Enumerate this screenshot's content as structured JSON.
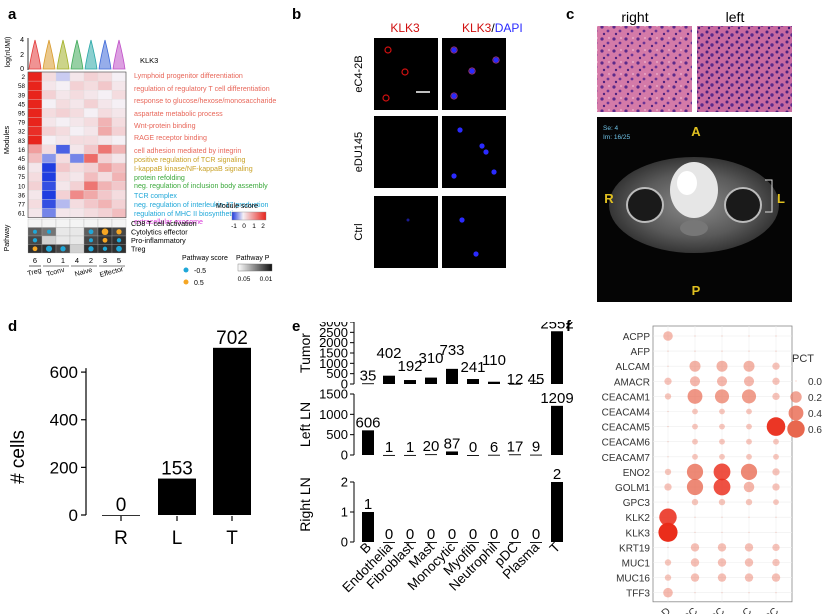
{
  "panel_labels": [
    "a",
    "b",
    "c",
    "d",
    "e",
    "f"
  ],
  "colors": {
    "heat_high": "#e8241c",
    "heat_low": "#1f3de0",
    "heat_mid": "#f5f0f5",
    "bar": "#000000",
    "dot": "#e8674e",
    "dapi": "#2a2aff",
    "klk3": "#d01010",
    "pathway_go_red": "#e8675a",
    "pathway_gold": "#c9a227",
    "pathway_green": "#3aa83a",
    "pathway_blue": "#1fa7d8",
    "pathway_magenta": "#d93ad9"
  },
  "panel_a": {
    "violin_ylabel": "log(nUMI)",
    "violin_ticks": [
      "4",
      "2",
      "0"
    ],
    "violin_gene": "KLK3",
    "modules_label": "Modules",
    "modules": [
      "2",
      "58",
      "39",
      "45",
      "95",
      "79",
      "32",
      "83",
      "16",
      "45",
      "66",
      "75",
      "10",
      "36",
      "77",
      "61"
    ],
    "terms": [
      {
        "text": "Lymphoid progenitor differentiation",
        "color": "red"
      },
      {
        "text": "regulation of regulatory T cell differentiation",
        "color": "red"
      },
      {
        "text": "response to glucose/hexose/monosaccharide",
        "color": "red"
      },
      {
        "text": "aspartate metabolic process",
        "color": "red"
      },
      {
        "text": "Wnt-protein binding",
        "color": "red"
      },
      {
        "text": "RAGE receptor binding",
        "color": "red"
      },
      {
        "text": "cell adhesion mediated by integrin",
        "color": "red"
      },
      {
        "text": "positive regulation of TCR signaling",
        "color": "gold"
      },
      {
        "text": "I-kappaB kinase/NF-kappaB signaling",
        "color": "gold"
      },
      {
        "text": "protein refolding",
        "color": "green"
      },
      {
        "text": "neg. regulation of inclusion body assembly",
        "color": "green"
      },
      {
        "text": "TCR complex",
        "color": "blue"
      },
      {
        "text": "neg. regulation of interleukin-17 production",
        "color": "blue"
      },
      {
        "text": "regulation of MHC II biosynthetic process",
        "color": "blue"
      },
      {
        "text": "extracellular exosome",
        "color": "magenta"
      }
    ],
    "pathway_label": "Pathway",
    "pathways": [
      "CD8 T cell activation",
      "Cytolytics effector",
      "Pro-inflammatory",
      "Treg"
    ],
    "clusters": [
      "6",
      "0",
      "1",
      "4",
      "2",
      "3",
      "5"
    ],
    "groups": [
      "Treg",
      "Tconv",
      "Naive",
      "Effector"
    ],
    "module_score_title": "Module score",
    "module_score_ticks": [
      "-1",
      "0",
      "1",
      "2"
    ],
    "pathway_score_title": "Pathway score",
    "pathway_score_values": [
      "-0.5",
      "0.5"
    ],
    "pathway_p_title": "Pathway P",
    "pathway_p_ticks": [
      "0.05",
      "0.01"
    ]
  },
  "panel_b": {
    "col_headers": {
      "klk3": "KLK3",
      "merge_a": "KLK3",
      "merge_sep": "/",
      "merge_b": "DAPI"
    },
    "rows": [
      "eC4-2B",
      "eDU145",
      "Ctrl"
    ]
  },
  "panel_c": {
    "headers": [
      "right",
      "left"
    ],
    "mri_info_1": "Se: 4",
    "mri_info_2": "Im: 16/25",
    "orientation": {
      "top": "A",
      "left": "R",
      "right": "L",
      "bottom": "P"
    }
  },
  "panel_d": {
    "chart_data": {
      "type": "bar",
      "categories": [
        "R",
        "L",
        "T"
      ],
      "values": [
        0,
        153,
        702
      ],
      "ylabel": "# cells",
      "yticks": [
        0,
        200,
        400,
        600
      ],
      "ylim": [
        0,
        760
      ]
    }
  },
  "panel_e": {
    "chart_data": {
      "type": "bar",
      "categories": [
        "B",
        "Endothelia",
        "Fibroblast",
        "Mast",
        "Monocytic",
        "Myofib",
        "Neutrophil",
        "pDC",
        "Plasma",
        "T"
      ],
      "series": [
        {
          "name": "Tumor",
          "values": [
            35,
            402,
            192,
            310,
            733,
            241,
            110,
            12,
            45,
            2552
          ],
          "yticks": [
            0,
            500,
            1000,
            1500,
            2000,
            2500,
            3000
          ],
          "ylim": [
            0,
            3000
          ]
        },
        {
          "name": "Left LN",
          "values": [
            606,
            1,
            1,
            20,
            87,
            0,
            6,
            17,
            9,
            1209
          ],
          "yticks": [
            0,
            500,
            1000,
            1500
          ],
          "ylim": [
            0,
            1500
          ]
        },
        {
          "name": "Right LN",
          "values": [
            1,
            0,
            0,
            0,
            0,
            0,
            0,
            0,
            0,
            2
          ],
          "yticks": [
            0,
            1,
            2
          ],
          "ylim": [
            0,
            2.5
          ]
        }
      ]
    }
  },
  "panel_f": {
    "chart_data": {
      "type": "scatter",
      "genes": [
        "ACPP",
        "AFP",
        "ALCAM",
        "AMACR",
        "CEACAM1",
        "CEACAM4",
        "CEACAM5",
        "CEACAM6",
        "CEACAM7",
        "ENO2",
        "GOLM1",
        "GPC3",
        "KLK2",
        "KLK3",
        "KRT19",
        "MUC1",
        "MUC16",
        "TFF3"
      ],
      "cancers": [
        "PRAD",
        "HCC",
        "CRC",
        "NSCLC",
        "HNSCC"
      ],
      "pct": [
        [
          0.12,
          0.0,
          0.0,
          0.0,
          0.0
        ],
        [
          0.0,
          0.0,
          0.0,
          0.0,
          0.0
        ],
        [
          0.0,
          0.18,
          0.18,
          0.18,
          0.05
        ],
        [
          0.05,
          0.14,
          0.14,
          0.14,
          0.05
        ],
        [
          0.03,
          0.4,
          0.35,
          0.35,
          0.05
        ],
        [
          0.0,
          0.02,
          0.02,
          0.02,
          0.0
        ],
        [
          0.0,
          0.02,
          0.02,
          0.02,
          0.7
        ],
        [
          0.0,
          0.02,
          0.02,
          0.02,
          0.02
        ],
        [
          0.0,
          0.02,
          0.02,
          0.02,
          0.02
        ],
        [
          0.03,
          0.5,
          0.55,
          0.5,
          0.05
        ],
        [
          0.05,
          0.5,
          0.55,
          0.16,
          0.05
        ],
        [
          0.0,
          0.03,
          0.03,
          0.03,
          0.02
        ],
        [
          0.6,
          0.0,
          0.0,
          0.0,
          0.0
        ],
        [
          0.75,
          0.0,
          0.0,
          0.0,
          0.0
        ],
        [
          0.0,
          0.08,
          0.08,
          0.08,
          0.05
        ],
        [
          0.03,
          0.08,
          0.08,
          0.08,
          0.05
        ],
        [
          0.03,
          0.08,
          0.08,
          0.08,
          0.08
        ],
        [
          0.12,
          0.0,
          0.0,
          0.0,
          0.0
        ]
      ],
      "legend_title": "PCT",
      "legend_values": [
        0.0,
        0.2,
        0.4,
        0.6
      ],
      "legend_labels": [
        "0.0",
        "0.2",
        "0.4",
        "0.6"
      ]
    }
  }
}
